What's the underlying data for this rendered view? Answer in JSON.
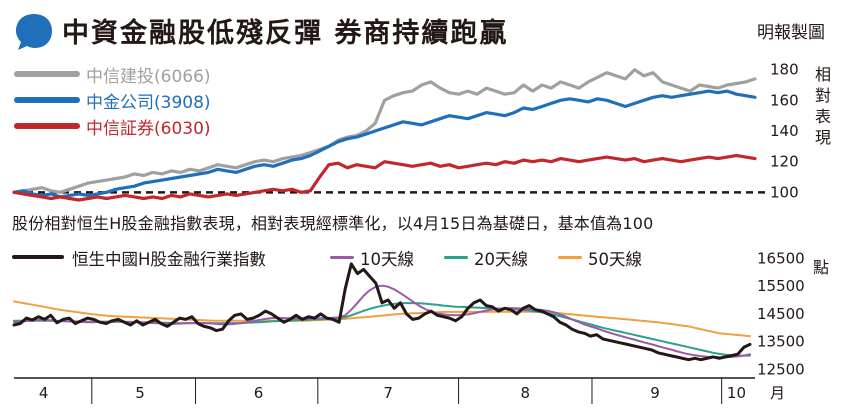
{
  "header": {
    "title": "中資金融股低殘反彈 券商持續跑贏",
    "credit": "明報製圖"
  },
  "note": "股份相對恒生H股金融指數表現，相對表現經標準化，以4月15日為基礎日，基本值為100",
  "colors": {
    "citic": "#9fa0a0",
    "cicc": "#1f6fba",
    "csc": "#c1272d",
    "index": "#231815",
    "ma10": "#9b5ba6",
    "ma20": "#2aa08e",
    "ma50": "#f0a040",
    "blob": "#1f6fba"
  },
  "chart_data": [
    {
      "type": "line",
      "title": "股份相對恒生H股金融指數表現",
      "ylabel": "相對表現",
      "ylim": [
        95,
        185
      ],
      "yticks": [
        100,
        120,
        140,
        160,
        180
      ],
      "baseline": 100,
      "x_range": [
        0,
        80
      ],
      "series": [
        {
          "name": "中信建投",
          "code": "(6066)",
          "color_key": "citic",
          "values": [
            100,
            101,
            102,
            103,
            101,
            100,
            102,
            104,
            106,
            107,
            108,
            109,
            110,
            112,
            111,
            113,
            112,
            114,
            113,
            115,
            114,
            116,
            118,
            117,
            116,
            118,
            120,
            121,
            120,
            122,
            123,
            124,
            126,
            128,
            130,
            134,
            136,
            137,
            140,
            145,
            160,
            163,
            165,
            166,
            170,
            172,
            168,
            165,
            164,
            166,
            164,
            168,
            166,
            164,
            165,
            170,
            166,
            170,
            168,
            172,
            170,
            168,
            172,
            175,
            178,
            176,
            174,
            180,
            176,
            178,
            172,
            170,
            168,
            166,
            170,
            169,
            168,
            170,
            171,
            172,
            174
          ]
        },
        {
          "name": "中金公司",
          "code": "(3908)",
          "color_key": "cicc",
          "values": [
            100,
            101,
            99,
            98,
            99,
            97,
            98,
            99,
            98,
            99,
            100,
            102,
            103,
            104,
            106,
            107,
            108,
            109,
            110,
            111,
            112,
            113,
            115,
            114,
            113,
            115,
            117,
            118,
            117,
            119,
            121,
            122,
            124,
            127,
            130,
            133,
            135,
            136,
            138,
            140,
            142,
            144,
            146,
            145,
            144,
            146,
            148,
            150,
            149,
            148,
            150,
            152,
            151,
            150,
            152,
            155,
            154,
            156,
            158,
            160,
            161,
            160,
            159,
            161,
            160,
            158,
            156,
            158,
            160,
            162,
            163,
            162,
            163,
            164,
            165,
            166,
            165,
            166,
            164,
            163,
            162
          ]
        },
        {
          "name": "中信証券",
          "code": "(6030)",
          "color_key": "csc",
          "values": [
            100,
            99,
            98,
            97,
            96,
            97,
            96,
            95,
            96,
            97,
            96,
            97,
            98,
            97,
            96,
            97,
            96,
            98,
            97,
            99,
            98,
            97,
            98,
            99,
            98,
            99,
            100,
            101,
            102,
            101,
            102,
            100,
            101,
            110,
            118,
            119,
            116,
            118,
            117,
            116,
            120,
            119,
            118,
            117,
            118,
            119,
            117,
            118,
            116,
            117,
            118,
            119,
            118,
            120,
            119,
            121,
            120,
            121,
            120,
            122,
            121,
            120,
            121,
            122,
            123,
            122,
            121,
            122,
            120,
            121,
            122,
            121,
            120,
            121,
            122,
            123,
            122,
            123,
            124,
            123,
            122
          ]
        }
      ]
    },
    {
      "type": "line",
      "title": "恒生中國H股金融行業指數",
      "ylabel": "點",
      "ylim": [
        12300,
        16800
      ],
      "yticks": [
        12500,
        13500,
        14500,
        15500,
        16500
      ],
      "xtick_labels": [
        "4",
        "5",
        "6",
        "7",
        "8",
        "9",
        "10"
      ],
      "x_unit": "月",
      "x_range": [
        0,
        120
      ],
      "series": [
        {
          "name": "恒生中國H股金融行業指數",
          "color_key": "index",
          "width": 3,
          "values": [
            14100,
            14150,
            14350,
            14280,
            14400,
            14300,
            14450,
            14180,
            14300,
            14350,
            14150,
            14250,
            14350,
            14300,
            14200,
            14150,
            14250,
            14300,
            14200,
            14100,
            14250,
            14100,
            14200,
            14300,
            14150,
            14050,
            14200,
            14350,
            14300,
            14400,
            14150,
            14050,
            14000,
            13900,
            13950,
            14250,
            14450,
            14500,
            14300,
            14350,
            14450,
            14600,
            14500,
            14350,
            14200,
            14300,
            14450,
            14300,
            14400,
            14350,
            14500,
            14350,
            14300,
            14200,
            15400,
            16300,
            15950,
            16100,
            15850,
            15600,
            14900,
            15000,
            14700,
            14900,
            14500,
            14300,
            14350,
            14500,
            14600,
            14450,
            14400,
            14350,
            14250,
            14400,
            14700,
            14900,
            15000,
            14800,
            14750,
            14600,
            14700,
            14650,
            14500,
            14700,
            14800,
            14650,
            14600,
            14500,
            14400,
            14200,
            14100,
            13950,
            13850,
            13800,
            13700,
            13750,
            13600,
            13550,
            13500,
            13450,
            13400,
            13350,
            13300,
            13250,
            13200,
            13100,
            13050,
            13000,
            12950,
            12900,
            12850,
            12900,
            12850,
            12900,
            12950,
            12900,
            12950,
            13000,
            13050,
            13300,
            13400
          ]
        },
        {
          "name": "10天線",
          "color_key": "ma10",
          "width": 2,
          "values": [
            14200,
            14220,
            14240,
            14260,
            14280,
            14280,
            14270,
            14250,
            14240,
            14230,
            14220,
            14210,
            14200,
            14200,
            14210,
            14220,
            14230,
            14230,
            14220,
            14210,
            14200,
            14190,
            14180,
            14170,
            14160,
            14150,
            14140,
            14150,
            14160,
            14170,
            14180,
            14170,
            14160,
            14140,
            14120,
            14120,
            14140,
            14170,
            14200,
            14240,
            14280,
            14320,
            14350,
            14360,
            14350,
            14340,
            14330,
            14320,
            14320,
            14330,
            14340,
            14350,
            14360,
            14370,
            14450,
            14650,
            14900,
            15150,
            15350,
            15480,
            15520,
            15480,
            15380,
            15250,
            15100,
            14950,
            14800,
            14680,
            14580,
            14520,
            14480,
            14460,
            14450,
            14460,
            14480,
            14520,
            14570,
            14620,
            14660,
            14690,
            14700,
            14710,
            14700,
            14690,
            14680,
            14660,
            14640,
            14610,
            14560,
            14490,
            14400,
            14300,
            14210,
            14120,
            14050,
            13980,
            13900,
            13830,
            13760,
            13700,
            13640,
            13580,
            13520,
            13460,
            13400,
            13340,
            13280,
            13220,
            13160,
            13100,
            13050,
            13010,
            12980,
            12960,
            12950,
            12940,
            12940,
            12950,
            12970,
            13000,
            13050
          ]
        },
        {
          "name": "20天線",
          "color_key": "ma20",
          "width": 2,
          "values": [
            14250,
            14250,
            14250,
            14250,
            14250,
            14250,
            14250,
            14240,
            14240,
            14230,
            14230,
            14230,
            14220,
            14220,
            14220,
            14220,
            14210,
            14210,
            14210,
            14200,
            14200,
            14200,
            14190,
            14190,
            14180,
            14180,
            14170,
            14170,
            14170,
            14170,
            14170,
            14170,
            14160,
            14160,
            14160,
            14160,
            14170,
            14170,
            14180,
            14190,
            14200,
            14210,
            14230,
            14240,
            14250,
            14260,
            14270,
            14280,
            14290,
            14300,
            14310,
            14320,
            14330,
            14340,
            14380,
            14450,
            14530,
            14610,
            14680,
            14740,
            14790,
            14830,
            14860,
            14880,
            14890,
            14890,
            14880,
            14870,
            14850,
            14830,
            14800,
            14780,
            14760,
            14750,
            14740,
            14730,
            14720,
            14710,
            14700,
            14690,
            14680,
            14670,
            14660,
            14640,
            14620,
            14590,
            14560,
            14520,
            14470,
            14420,
            14360,
            14300,
            14240,
            14180,
            14120,
            14060,
            14000,
            13950,
            13900,
            13850,
            13800,
            13750,
            13700,
            13650,
            13600,
            13550,
            13500,
            13450,
            13400,
            13350,
            13300,
            13250,
            13200,
            13150,
            13100,
            13060,
            13030,
            13010,
            13000,
            13000,
            13000
          ]
        },
        {
          "name": "50天線",
          "color_key": "ma50",
          "width": 2,
          "values": [
            14950,
            14910,
            14870,
            14830,
            14790,
            14750,
            14710,
            14670,
            14630,
            14600,
            14570,
            14540,
            14510,
            14480,
            14460,
            14440,
            14420,
            14410,
            14400,
            14390,
            14380,
            14370,
            14360,
            14350,
            14340,
            14330,
            14320,
            14310,
            14300,
            14290,
            14280,
            14270,
            14260,
            14250,
            14250,
            14250,
            14250,
            14250,
            14250,
            14250,
            14250,
            14250,
            14250,
            14250,
            14250,
            14250,
            14250,
            14250,
            14260,
            14270,
            14280,
            14290,
            14300,
            14310,
            14320,
            14340,
            14360,
            14380,
            14400,
            14420,
            14440,
            14460,
            14480,
            14500,
            14510,
            14520,
            14530,
            14540,
            14550,
            14560,
            14570,
            14570,
            14570,
            14570,
            14570,
            14570,
            14570,
            14570,
            14580,
            14580,
            14580,
            14580,
            14580,
            14580,
            14580,
            14570,
            14560,
            14550,
            14540,
            14520,
            14500,
            14480,
            14460,
            14440,
            14420,
            14400,
            14380,
            14360,
            14340,
            14320,
            14300,
            14280,
            14260,
            14240,
            14220,
            14200,
            14170,
            14140,
            14110,
            14080,
            14050,
            14000,
            13950,
            13900,
            13850,
            13800,
            13780,
            13760,
            13740,
            13720,
            13700
          ]
        }
      ]
    }
  ],
  "y_axis_labels": {
    "top": "相對表現",
    "bottom": "點"
  }
}
